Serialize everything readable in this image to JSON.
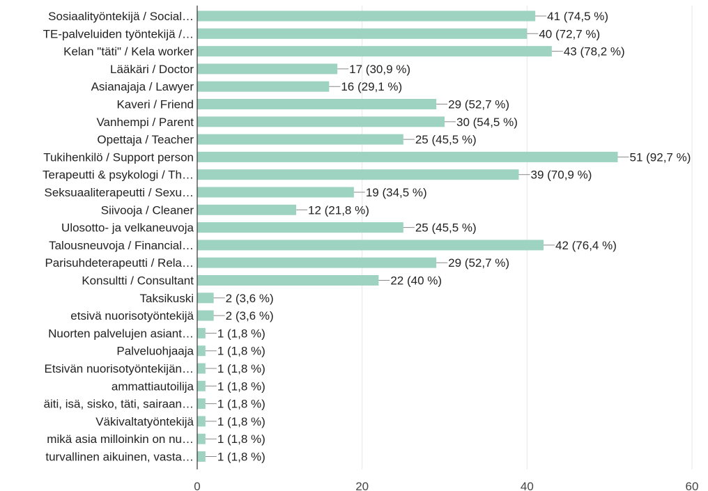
{
  "chart_data": {
    "type": "bar",
    "orientation": "horizontal",
    "bar_color": "#9fd3c1",
    "xlim": [
      0,
      60
    ],
    "x_ticks": [
      0,
      20,
      40,
      60
    ],
    "grid": true,
    "title": "",
    "xlabel": "",
    "ylabel": "",
    "categories": [
      "Sosiaalityöntekijä / Social…",
      "TE-palveluiden työntekijä /…",
      "Kelan \"täti\" / Kela worker",
      "Lääkäri / Doctor",
      "Asianajaja / Lawyer",
      "Kaveri / Friend",
      "Vanhempi / Parent",
      "Opettaja / Teacher",
      "Tukihenkilö / Support person",
      "Terapeutti & psykologi / Th…",
      "Seksuaaliterapeutti / Sexu…",
      "Siivooja / Cleaner",
      "Ulosotto- ja velkaneuvoja",
      "Talousneuvoja / Financial…",
      "Parisuhdeterapeutti / Rela…",
      "Konsultti / Consultant",
      "Taksikuski",
      "etsivä nuorisotyöntekijä",
      "Nuorten palvelujen asiant…",
      "Palveluohjaaja",
      "Etsivän nuorisotyöntekijän…",
      "ammattiautoilija",
      "äiti, isä, sisko, täti, sairaan…",
      "Väkivaltatyöntekijä",
      "mikä asia milloinkin on nu…",
      "turvallinen aikuinen, vasta…"
    ],
    "values": [
      41,
      40,
      43,
      17,
      16,
      29,
      30,
      25,
      51,
      39,
      19,
      12,
      25,
      42,
      29,
      22,
      2,
      2,
      1,
      1,
      1,
      1,
      1,
      1,
      1,
      1
    ],
    "value_labels": [
      "41 (74,5 %)",
      "40 (72,7 %)",
      "43 (78,2 %)",
      "17 (30,9 %)",
      "16 (29,1 %)",
      "29 (52,7 %)",
      "30 (54,5 %)",
      "25 (45,5 %)",
      "51 (92,7 %)",
      "39 (70,9 %)",
      "19 (34,5 %)",
      "12 (21,8 %)",
      "25 (45,5 %)",
      "42 (76,4 %)",
      "29 (52,7 %)",
      "22 (40 %)",
      "2 (3,6 %)",
      "2 (3,6 %)",
      "1 (1,8 %)",
      "1 (1,8 %)",
      "1 (1,8 %)",
      "1 (1,8 %)",
      "1 (1,8 %)",
      "1 (1,8 %)",
      "1 (1,8 %)",
      "1 (1,8 %)"
    ]
  }
}
